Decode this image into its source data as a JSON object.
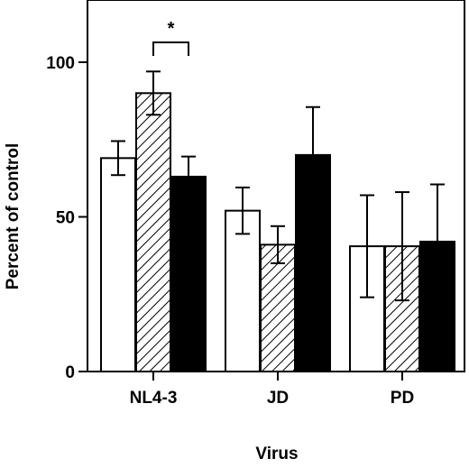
{
  "chart_data": {
    "type": "bar",
    "xlabel": "Virus",
    "ylabel": "Percent of control",
    "ylim": [
      0,
      120
    ],
    "yticks": [
      0,
      50,
      100
    ],
    "categories": [
      "NL4-3",
      "JD",
      "PD"
    ],
    "series": [
      {
        "fill": "white",
        "values": [
          69,
          52,
          40.5
        ],
        "errors": [
          5.5,
          7.5,
          16.5
        ]
      },
      {
        "fill": "hatched",
        "values": [
          90,
          41,
          40.5
        ],
        "errors": [
          7,
          6,
          17.5
        ]
      },
      {
        "fill": "black",
        "values": [
          63,
          70,
          42
        ],
        "errors": [
          6.5,
          15.5,
          18.5
        ]
      }
    ],
    "annotation": {
      "text": "*",
      "category": "NL4-3",
      "between_series": [
        1,
        2
      ]
    }
  }
}
